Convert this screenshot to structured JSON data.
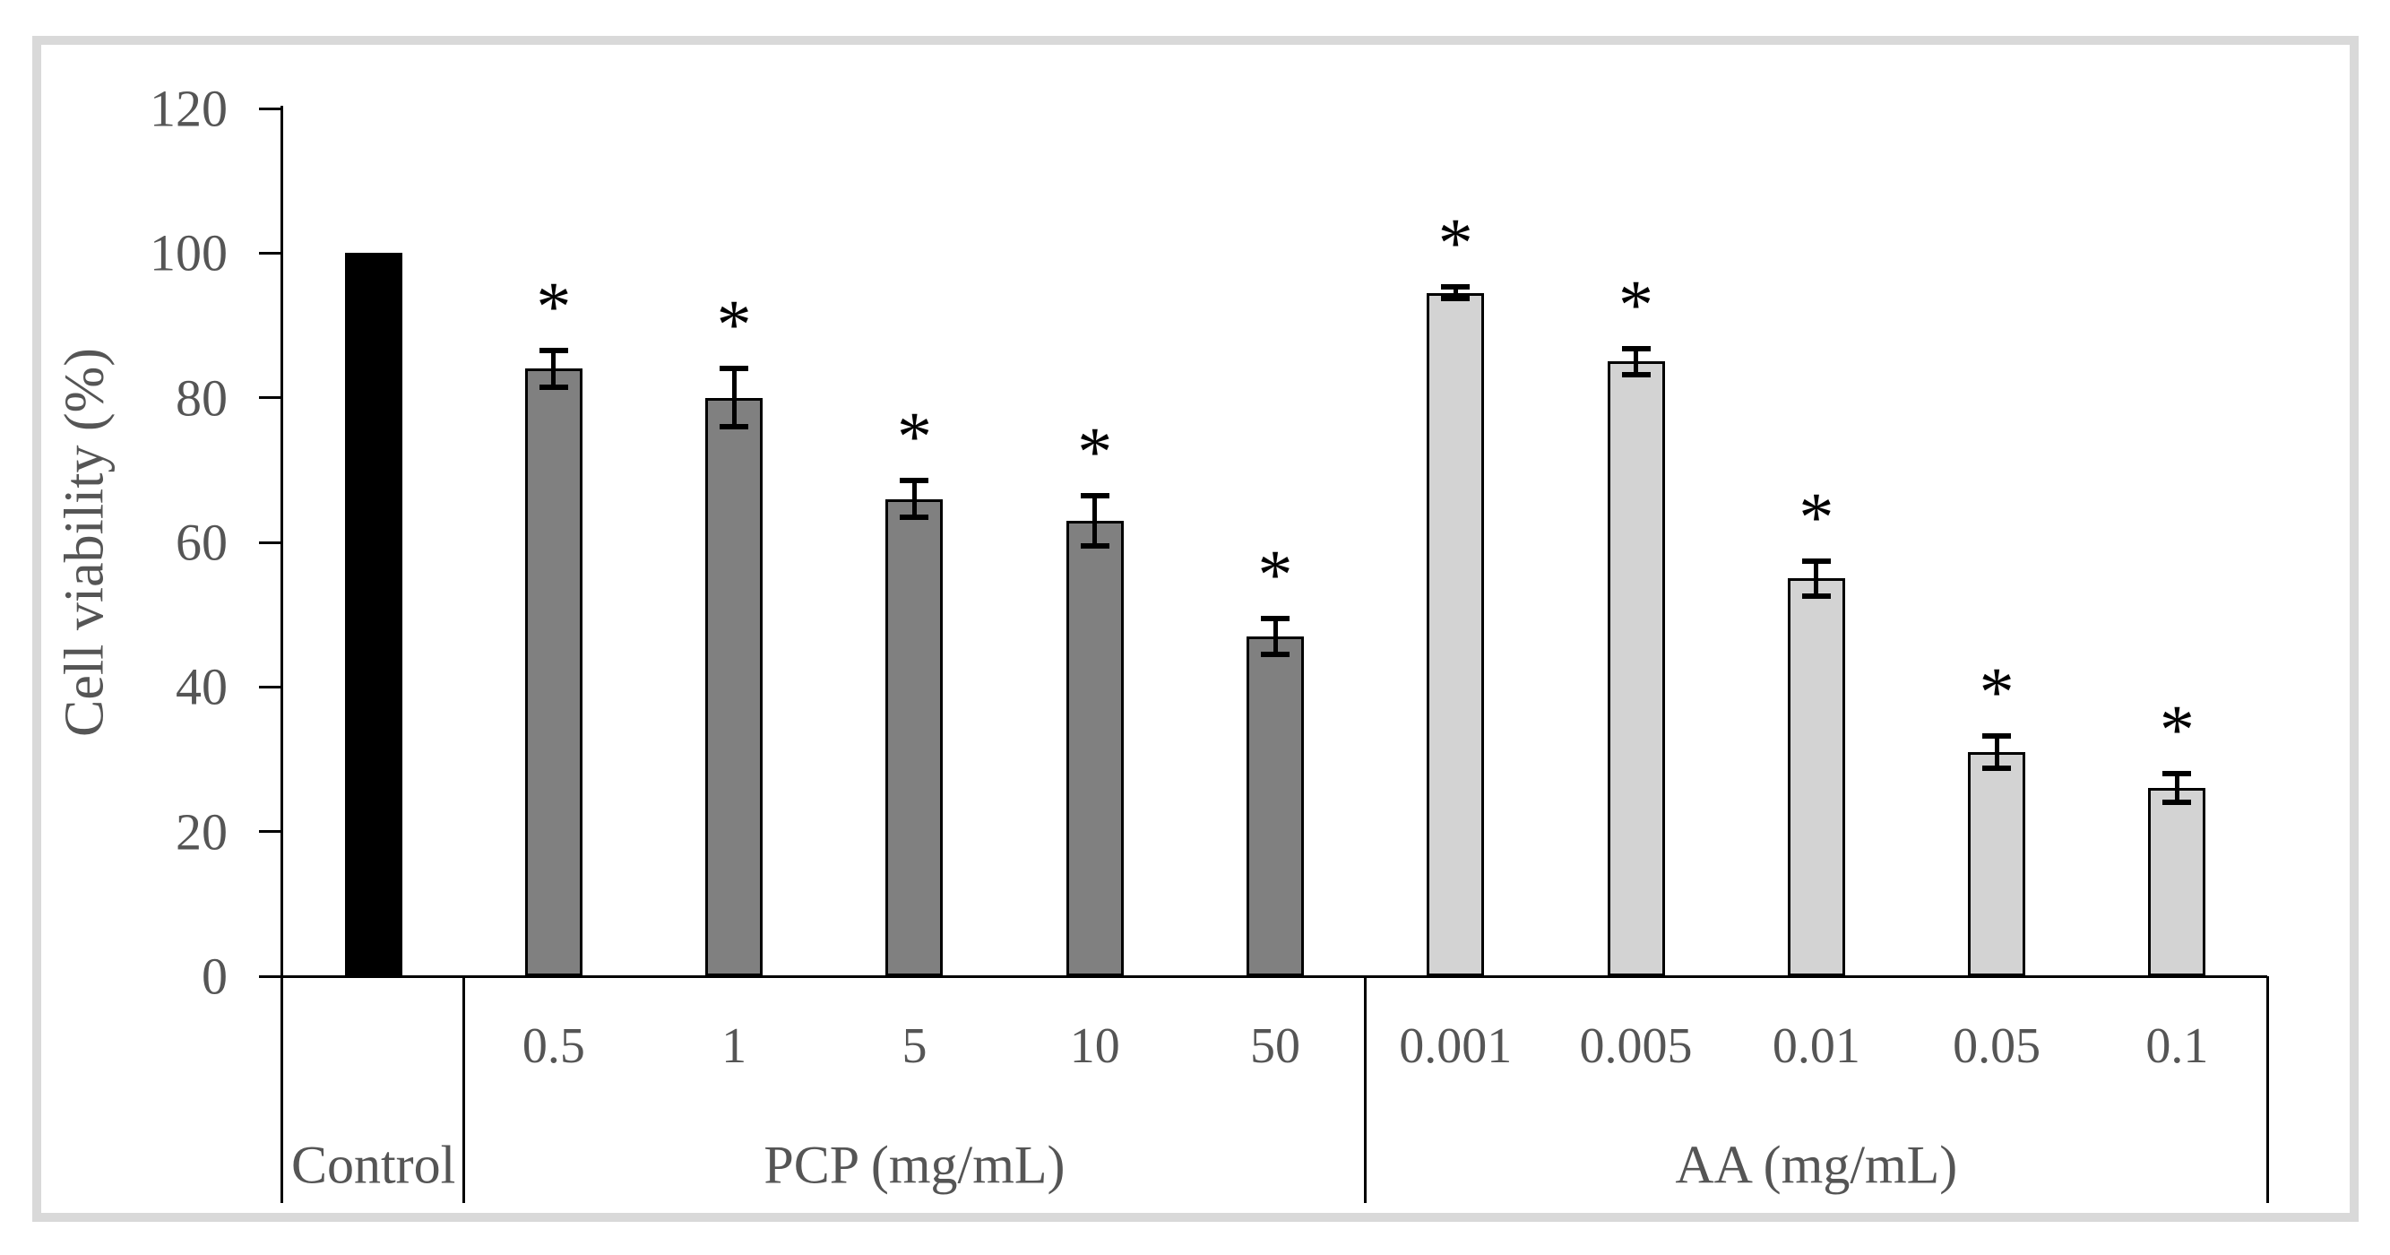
{
  "figure": {
    "frame_color": "#d9d9d9",
    "background_color": "#ffffff",
    "axis_color": "#000000",
    "text_color": "#555555"
  },
  "chart_data": {
    "type": "bar",
    "title": "",
    "ylabel": "Cell viability (%)",
    "xlabel": "",
    "ylim": [
      0,
      120
    ],
    "yticks": [
      0,
      20,
      40,
      60,
      80,
      100,
      120
    ],
    "grid": false,
    "legend": false,
    "error_bars": true,
    "significance_marker": "*",
    "groups": [
      {
        "label": "Control",
        "bar_color": "#000000",
        "bars": [
          {
            "tick_label": "",
            "value": 100,
            "error": null,
            "significant": false
          }
        ]
      },
      {
        "label": "PCP (mg/mL)",
        "bar_color": "#808080",
        "bars": [
          {
            "tick_label": "0.5",
            "value": 84,
            "error": 2.5,
            "significant": true
          },
          {
            "tick_label": "1",
            "value": 80,
            "error": 4,
            "significant": true
          },
          {
            "tick_label": "5",
            "value": 66,
            "error": 2.5,
            "significant": true
          },
          {
            "tick_label": "10",
            "value": 63,
            "error": 3.5,
            "significant": true
          },
          {
            "tick_label": "50",
            "value": 47,
            "error": 2.5,
            "significant": true
          }
        ]
      },
      {
        "label": "AA (mg/mL)",
        "bar_color": "#d3d3d3",
        "bars": [
          {
            "tick_label": "0.001",
            "value": 94.5,
            "error": 0.8,
            "significant": true
          },
          {
            "tick_label": "0.005",
            "value": 85,
            "error": 1.8,
            "significant": true
          },
          {
            "tick_label": "0.01",
            "value": 55,
            "error": 2.4,
            "significant": true
          },
          {
            "tick_label": "0.05",
            "value": 31,
            "error": 2.2,
            "significant": true
          },
          {
            "tick_label": "0.1",
            "value": 26,
            "error": 2,
            "significant": true
          }
        ]
      }
    ]
  }
}
